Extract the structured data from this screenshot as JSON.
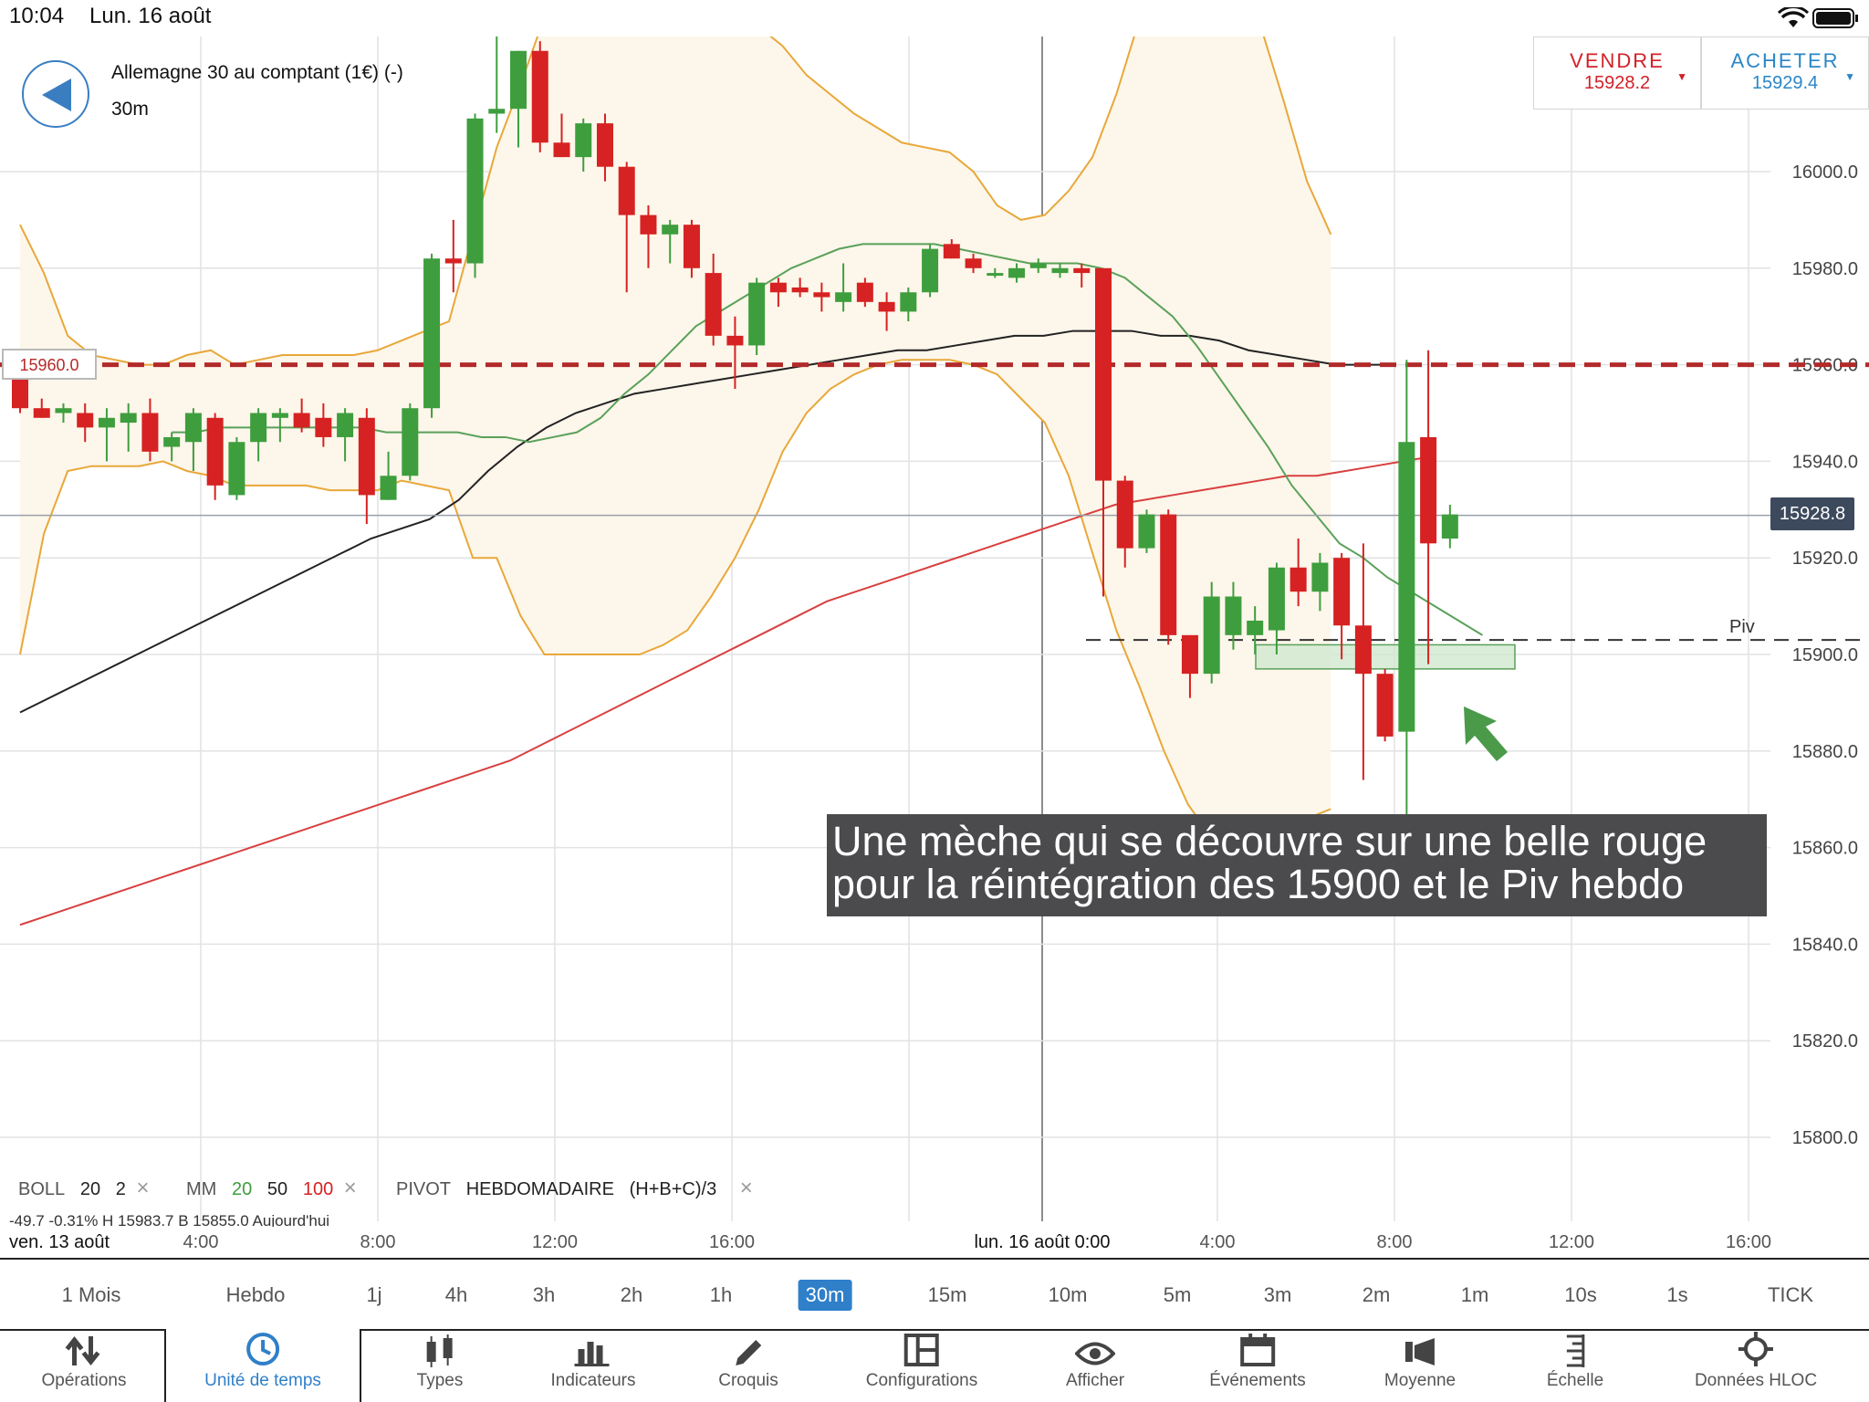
{
  "status_bar": {
    "time": "10:04",
    "date": "Lun. 16 août"
  },
  "header": {
    "instrument": "Allemagne 30 au comptant (1€) (-)",
    "timeframe": "30m"
  },
  "trade": {
    "sell_label": "VENDRE",
    "sell_price": "15928.2",
    "buy_label": "ACHETER",
    "buy_price": "15929.4"
  },
  "colors": {
    "sell": "#d32027",
    "buy": "#2a86c6",
    "bull": "#3e9e3e",
    "bear": "#d62222",
    "band": "#e8a83a",
    "ma20": "#5aa15a",
    "ma50": "#222222",
    "ma100": "#d84040"
  },
  "price_axis": {
    "ticks": [
      "16000.0",
      "15980.0",
      "15960.0",
      "15940.0",
      "15920.0",
      "15900.0",
      "15880.0",
      "15860.0",
      "15840.0",
      "15820.0",
      "15800.0"
    ]
  },
  "current_price": "15928.8",
  "level_label": "15960.0",
  "pivot_label": "Piv",
  "annotation": {
    "line1": "Une mèche qui se découvre sur une belle rouge",
    "line2": "pour la réintégration des 15900 et le Piv hebdo"
  },
  "indicators": {
    "boll": {
      "name": "BOLL",
      "p1": "20",
      "p2": "2"
    },
    "mm": {
      "name": "MM",
      "p1": "20",
      "p2": "50",
      "p3": "100"
    },
    "pivot": {
      "name": "PIVOT",
      "p1": "HEBDOMADAIRE",
      "p2": "(H+B+C)/3"
    },
    "values_row": "-49.7   -0.31%      H 15983.7   B 15855.0   Aujourd'hui"
  },
  "x_axis": {
    "labels": [
      {
        "text": "ven. 13 août",
        "dark": true
      },
      {
        "text": "4:00"
      },
      {
        "text": "8:00"
      },
      {
        "text": "12:00"
      },
      {
        "text": "16:00"
      },
      {
        "text": "lun. 16 août 0:00",
        "dark": true
      },
      {
        "text": "4:00"
      },
      {
        "text": "8:00"
      },
      {
        "text": "12:00"
      },
      {
        "text": "16:00"
      }
    ]
  },
  "timescales": [
    "1 Mois",
    "Hebdo",
    "1j",
    "4h",
    "3h",
    "2h",
    "1h",
    "30m",
    "15m",
    "10m",
    "5m",
    "3m",
    "2m",
    "1m",
    "10s",
    "1s",
    "TICK"
  ],
  "active_timescale": "30m",
  "toolbar": [
    {
      "label": "Opérations",
      "icon": "operations-icon"
    },
    {
      "label": "Unité de temps",
      "icon": "clock-icon",
      "active": true
    },
    {
      "label": "Types",
      "icon": "candle-type-icon"
    },
    {
      "label": "Indicateurs",
      "icon": "bar-chart-icon"
    },
    {
      "label": "Croquis",
      "icon": "pencil-icon"
    },
    {
      "label": "Configurations",
      "icon": "layout-icon"
    },
    {
      "label": "Afficher",
      "icon": "eye-icon"
    },
    {
      "label": "Événements",
      "icon": "calendar-icon"
    },
    {
      "label": "Moyenne",
      "icon": "megaphone-icon"
    },
    {
      "label": "Échelle",
      "icon": "scale-icon"
    },
    {
      "label": "Données HLOC",
      "icon": "crosshair-icon"
    }
  ],
  "chart_data": {
    "type": "candlestick",
    "ylim": [
      15785,
      16025
    ],
    "candles": [
      {
        "o": 15957,
        "h": 15960,
        "l": 15950,
        "c": 15951
      },
      {
        "o": 15951,
        "h": 15953,
        "l": 15949,
        "c": 15949
      },
      {
        "o": 15950,
        "h": 15952,
        "l": 15948,
        "c": 15951
      },
      {
        "o": 15950,
        "h": 15952,
        "l": 15944,
        "c": 15947
      },
      {
        "o": 15947,
        "h": 15951,
        "l": 15940,
        "c": 15949
      },
      {
        "o": 15948,
        "h": 15952,
        "l": 15942,
        "c": 15950
      },
      {
        "o": 15950,
        "h": 15953,
        "l": 15940,
        "c": 15942
      },
      {
        "o": 15943,
        "h": 15946,
        "l": 15940,
        "c": 15945
      },
      {
        "o": 15944,
        "h": 15951,
        "l": 15938,
        "c": 15950
      },
      {
        "o": 15949,
        "h": 15950,
        "l": 15932,
        "c": 15935
      },
      {
        "o": 15933,
        "h": 15945,
        "l": 15932,
        "c": 15944
      },
      {
        "o": 15944,
        "h": 15951,
        "l": 15940,
        "c": 15950
      },
      {
        "o": 15949,
        "h": 15951,
        "l": 15944,
        "c": 15950
      },
      {
        "o": 15950,
        "h": 15953,
        "l": 15946,
        "c": 15947
      },
      {
        "o": 15949,
        "h": 15952,
        "l": 15943,
        "c": 15945
      },
      {
        "o": 15945,
        "h": 15951,
        "l": 15940,
        "c": 15950
      },
      {
        "o": 15949,
        "h": 15951,
        "l": 15927,
        "c": 15933
      },
      {
        "o": 15932,
        "h": 15942,
        "l": 15932,
        "c": 15937
      },
      {
        "o": 15937,
        "h": 15952,
        "l": 15936,
        "c": 15951
      },
      {
        "o": 15951,
        "h": 15983,
        "l": 15949,
        "c": 15982
      },
      {
        "o": 15982,
        "h": 15990,
        "l": 15975,
        "c": 15981
      },
      {
        "o": 15981,
        "h": 16012,
        "l": 15978,
        "c": 16011
      },
      {
        "o": 16012,
        "h": 16028,
        "l": 16008,
        "c": 16013
      },
      {
        "o": 16013,
        "h": 16025,
        "l": 16005,
        "c": 16025
      },
      {
        "o": 16025,
        "h": 16027,
        "l": 16004,
        "c": 16006
      },
      {
        "o": 16006,
        "h": 16012,
        "l": 16003,
        "c": 16003
      },
      {
        "o": 16003,
        "h": 16011,
        "l": 16000,
        "c": 16010
      },
      {
        "o": 16010,
        "h": 16012,
        "l": 15998,
        "c": 16001
      },
      {
        "o": 16001,
        "h": 16002,
        "l": 15975,
        "c": 15991
      },
      {
        "o": 15991,
        "h": 15993,
        "l": 15980,
        "c": 15987
      },
      {
        "o": 15987,
        "h": 15990,
        "l": 15981,
        "c": 15989
      },
      {
        "o": 15989,
        "h": 15990,
        "l": 15978,
        "c": 15980
      },
      {
        "o": 15979,
        "h": 15983,
        "l": 15964,
        "c": 15966
      },
      {
        "o": 15966,
        "h": 15970,
        "l": 15955,
        "c": 15964
      },
      {
        "o": 15964,
        "h": 15978,
        "l": 15962,
        "c": 15977
      },
      {
        "o": 15977,
        "h": 15978,
        "l": 15972,
        "c": 15975
      },
      {
        "o": 15976,
        "h": 15978,
        "l": 15974,
        "c": 15975
      },
      {
        "o": 15975,
        "h": 15977,
        "l": 15971,
        "c": 15974
      },
      {
        "o": 15973,
        "h": 15981,
        "l": 15971,
        "c": 15975
      },
      {
        "o": 15977,
        "h": 15978,
        "l": 15972,
        "c": 15973
      },
      {
        "o": 15973,
        "h": 15975,
        "l": 15967,
        "c": 15971
      },
      {
        "o": 15971,
        "h": 15976,
        "l": 15969,
        "c": 15975
      },
      {
        "o": 15975,
        "h": 15985,
        "l": 15974,
        "c": 15984
      },
      {
        "o": 15985,
        "h": 15986,
        "l": 15982,
        "c": 15982
      },
      {
        "o": 15982,
        "h": 15983,
        "l": 15979,
        "c": 15980
      },
      {
        "o": 15979,
        "h": 15980,
        "l": 15978,
        "c": 15979
      },
      {
        "o": 15978,
        "h": 15981,
        "l": 15977,
        "c": 15980
      },
      {
        "o": 15980,
        "h": 15982,
        "l": 15979,
        "c": 15981
      },
      {
        "o": 15979,
        "h": 15981,
        "l": 15978,
        "c": 15980
      },
      {
        "o": 15980,
        "h": 15981,
        "l": 15976,
        "c": 15979
      },
      {
        "o": 15980,
        "h": 15980,
        "l": 15912,
        "c": 15936
      },
      {
        "o": 15936,
        "h": 15937,
        "l": 15918,
        "c": 15922
      },
      {
        "o": 15922,
        "h": 15930,
        "l": 15921,
        "c": 15929
      },
      {
        "o": 15929,
        "h": 15930,
        "l": 15902,
        "c": 15904
      },
      {
        "o": 15904,
        "h": 15904,
        "l": 15891,
        "c": 15896
      },
      {
        "o": 15896,
        "h": 15915,
        "l": 15894,
        "c": 15912
      },
      {
        "o": 15904,
        "h": 15915,
        "l": 15901,
        "c": 15912
      },
      {
        "o": 15904,
        "h": 15910,
        "l": 15900,
        "c": 15907
      },
      {
        "o": 15905,
        "h": 15919,
        "l": 15900,
        "c": 15918
      },
      {
        "o": 15918,
        "h": 15924,
        "l": 15910,
        "c": 15913
      },
      {
        "o": 15913,
        "h": 15921,
        "l": 15909,
        "c": 15919
      },
      {
        "o": 15920,
        "h": 15921,
        "l": 15899,
        "c": 15906
      },
      {
        "o": 15906,
        "h": 15923,
        "l": 15874,
        "c": 15896
      },
      {
        "o": 15896,
        "h": 15897,
        "l": 15882,
        "c": 15883
      },
      {
        "o": 15884,
        "h": 15961,
        "l": 15857,
        "c": 15944
      },
      {
        "o": 15945,
        "h": 15963,
        "l": 15898,
        "c": 15923
      },
      {
        "o": 15924,
        "h": 15931,
        "l": 15922,
        "c": 15929
      }
    ],
    "boll_upper": [
      15989,
      15979,
      15966,
      15962,
      15961,
      15960,
      15960,
      15962,
      15963,
      15960,
      15961,
      15962,
      15962,
      15962,
      15962,
      15963,
      15965,
      15967,
      15969,
      15987,
      16005,
      16018,
      16032,
      16045,
      16050,
      16052,
      16053,
      16051,
      16046,
      16040,
      16035,
      16030,
      16026,
      16020,
      16016,
      16012,
      16009,
      16006,
      16005,
      16004,
      16000,
      15993,
      15990,
      15991,
      15996,
      16003,
      16016,
      16032,
      16039,
      16042,
      16043,
      16040,
      16031,
      16015,
      15998,
      15987
    ],
    "boll_lower": [
      15900,
      15925,
      15938,
      15939,
      15939,
      15939,
      15940,
      15938,
      15937,
      15935,
      15935,
      15935,
      15935,
      15934,
      15934,
      15934,
      15936,
      15935,
      15934,
      15920,
      15920,
      15908,
      15900,
      15900,
      15900,
      15900,
      15900,
      15902,
      15905,
      15912,
      15920,
      15930,
      15942,
      15950,
      15955,
      15958,
      15960,
      15961,
      15961,
      15961,
      15960,
      15958,
      15953,
      15948,
      15937,
      15921,
      15905,
      15893,
      15880,
      15869,
      15862,
      15860,
      15860,
      15863,
      15866,
      15868
    ],
    "boll_start": 0,
    "ma20": [
      15946,
      15946,
      15947,
      15947,
      15947,
      15947,
      15947,
      15947,
      15947,
      15946,
      15946,
      15946,
      15946,
      15945,
      15945,
      15944,
      15945,
      15946,
      15949,
      15954,
      15958,
      15963,
      15968,
      15971,
      15974,
      15977,
      15980,
      15982,
      15984,
      15985,
      15985,
      15985,
      15985,
      15984,
      15983,
      15982,
      15981,
      15981,
      15981,
      15980,
      15978,
      15974,
      15970,
      15964,
      15957,
      15950,
      15943,
      15935,
      15929,
      15923,
      15920,
      15916,
      15913,
      15910,
      15907,
      15904
    ],
    "ma20_start": 7,
    "ma50": [
      15888,
      15891,
      15894,
      15897,
      15900,
      15903,
      15906,
      15909,
      15912,
      15915,
      15918,
      15921,
      15924,
      15926,
      15928,
      15932,
      15938,
      15943,
      15947,
      15950,
      15952,
      15954,
      15955,
      15956,
      15957,
      15958,
      15959,
      15960,
      15961,
      15962,
      15963,
      15963,
      15964,
      15965,
      15966,
      15966,
      15967,
      15967,
      15967,
      15966,
      15966,
      15965,
      15963,
      15962,
      15961,
      15960,
      15960,
      15960
    ],
    "ma50_start": 0,
    "ma100": [
      15844,
      15846,
      15848,
      15850,
      15852,
      15854,
      15856,
      15858,
      15860,
      15862,
      15864,
      15866,
      15868,
      15870,
      15872,
      15874,
      15876,
      15878,
      15881,
      15884,
      15887,
      15890,
      15893,
      15896,
      15899,
      15902,
      15905,
      15908,
      15911,
      15913,
      15915,
      15917,
      15919,
      15921,
      15923,
      15925,
      15927,
      15929,
      15931,
      15932,
      15933,
      15934,
      15935,
      15936,
      15937,
      15937,
      15938,
      15939,
      15940,
      15941
    ],
    "ma100_start": 0,
    "levels": {
      "resistance": 15960,
      "pivot": 15903,
      "current": 15928.8
    },
    "zone": {
      "y1": 15897,
      "y2": 15902
    }
  }
}
